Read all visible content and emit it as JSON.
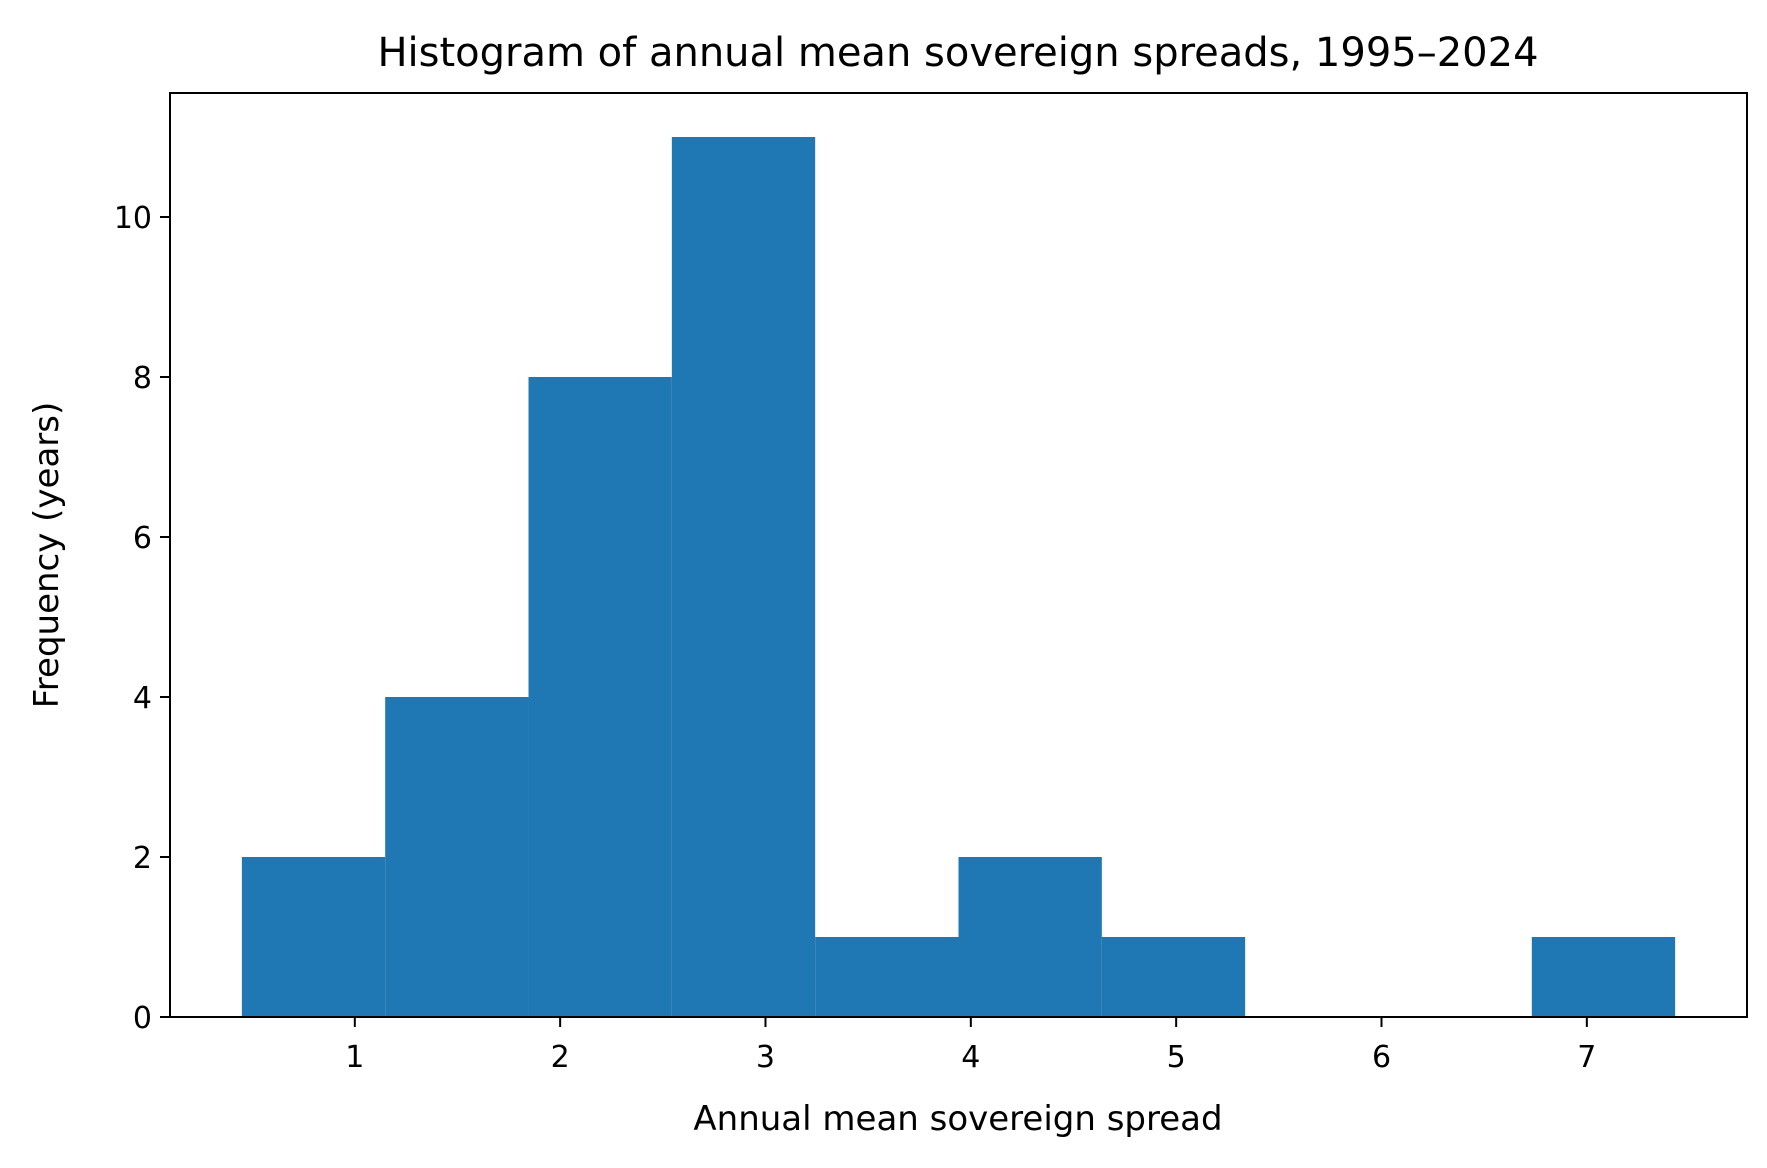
{
  "chart_data": {
    "type": "bar",
    "title": "Histogram of annual mean sovereign spreads, 1995–2024",
    "xlabel": "Annual mean sovereign spread",
    "ylabel": "Frequency (years)",
    "bins": [
      {
        "x0": 0.45,
        "x1": 1.148,
        "count": 2
      },
      {
        "x0": 1.148,
        "x1": 1.846,
        "count": 4
      },
      {
        "x0": 1.846,
        "x1": 2.544,
        "count": 8
      },
      {
        "x0": 2.544,
        "x1": 3.242,
        "count": 11
      },
      {
        "x0": 3.242,
        "x1": 3.94,
        "count": 1
      },
      {
        "x0": 3.94,
        "x1": 4.638,
        "count": 2
      },
      {
        "x0": 4.638,
        "x1": 5.336,
        "count": 1
      },
      {
        "x0": 5.336,
        "x1": 6.034,
        "count": 0
      },
      {
        "x0": 6.034,
        "x1": 6.732,
        "count": 0
      },
      {
        "x0": 6.732,
        "x1": 7.43,
        "count": 1
      }
    ],
    "xlim": [
      0.1,
      7.78
    ],
    "ylim": [
      0,
      11.55
    ],
    "xticks": [
      1,
      2,
      3,
      4,
      5,
      6,
      7
    ],
    "yticks": [
      0,
      2,
      4,
      6,
      8,
      10
    ],
    "bar_color": "#1f77b4",
    "grid": false,
    "legend": "none"
  }
}
